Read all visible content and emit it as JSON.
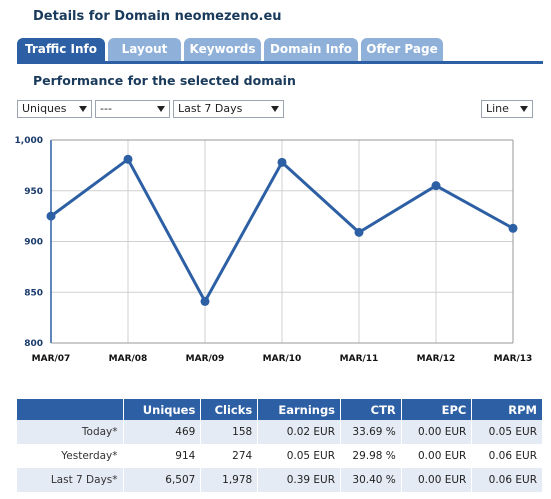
{
  "header": {
    "title": "Details for Domain neomezeno.eu"
  },
  "tabs": [
    {
      "label": "Traffic Info",
      "active": true
    },
    {
      "label": "Layout",
      "active": false
    },
    {
      "label": "Keywords",
      "active": false
    },
    {
      "label": "Domain Info",
      "active": false
    },
    {
      "label": "Offer Page",
      "active": false
    }
  ],
  "section": {
    "subtitle": "Performance for the selected domain"
  },
  "filters": {
    "metric": "Uniques",
    "secondary": "---",
    "range": "Last 7 Days",
    "chart_type": "Line"
  },
  "colors": {
    "accent": "#2d5fa4",
    "tab_inactive": "#8fb0d8",
    "row_alt": "#e4ebf4",
    "line": "#2d5fa4"
  },
  "chart_data": {
    "type": "line",
    "categories": [
      "MAR/07",
      "MAR/08",
      "MAR/09",
      "MAR/10",
      "MAR/11",
      "MAR/12",
      "MAR/13"
    ],
    "series": [
      {
        "values": [
          925,
          981,
          841,
          978,
          909,
          955,
          913
        ]
      }
    ],
    "ylim": [
      800,
      1000
    ],
    "yticks": [
      "1,000",
      "950",
      "900",
      "850",
      "800"
    ],
    "grid": true
  },
  "table": {
    "headers": [
      "",
      "Uniques",
      "Clicks",
      "Earnings",
      "CTR",
      "EPC",
      "RPM"
    ],
    "rows": [
      [
        "Today*",
        "469",
        "158",
        "0.02 EUR",
        "33.69 %",
        "0.00 EUR",
        "0.05 EUR"
      ],
      [
        "Yesterday*",
        "914",
        "274",
        "0.05 EUR",
        "29.98 %",
        "0.00 EUR",
        "0.06 EUR"
      ],
      [
        "Last 7 Days*",
        "6,507",
        "1,978",
        "0.39 EUR",
        "30.40 %",
        "0.00 EUR",
        "0.06 EUR"
      ]
    ]
  }
}
